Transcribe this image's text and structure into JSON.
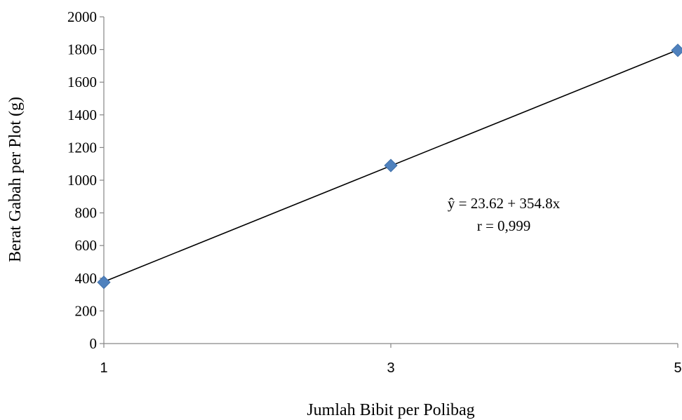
{
  "chart_data": {
    "type": "scatter",
    "title": "",
    "xlabel": "Jumlah Bibit per Polibag",
    "ylabel": "Berat Gabah per Plot (g)",
    "xlim": [
      1,
      5
    ],
    "ylim": [
      0,
      2000
    ],
    "x_ticks": [
      "1",
      "3",
      "5"
    ],
    "y_ticks": [
      "0",
      "200",
      "400",
      "600",
      "800",
      "1000",
      "1200",
      "1400",
      "1600",
      "1800",
      "2000"
    ],
    "grid": false,
    "series": [
      {
        "x": [
          1,
          3,
          5
        ],
        "y": [
          375,
          1090,
          1795
        ],
        "marker": "diamond",
        "color": "#4f81bd"
      }
    ],
    "trendline": {
      "intercept": 23.62,
      "slope": 354.8,
      "color": "#000000"
    },
    "annotations": {
      "equation": "ŷ = 23.62 + 354.8x",
      "r": "r  = 0,999"
    }
  }
}
